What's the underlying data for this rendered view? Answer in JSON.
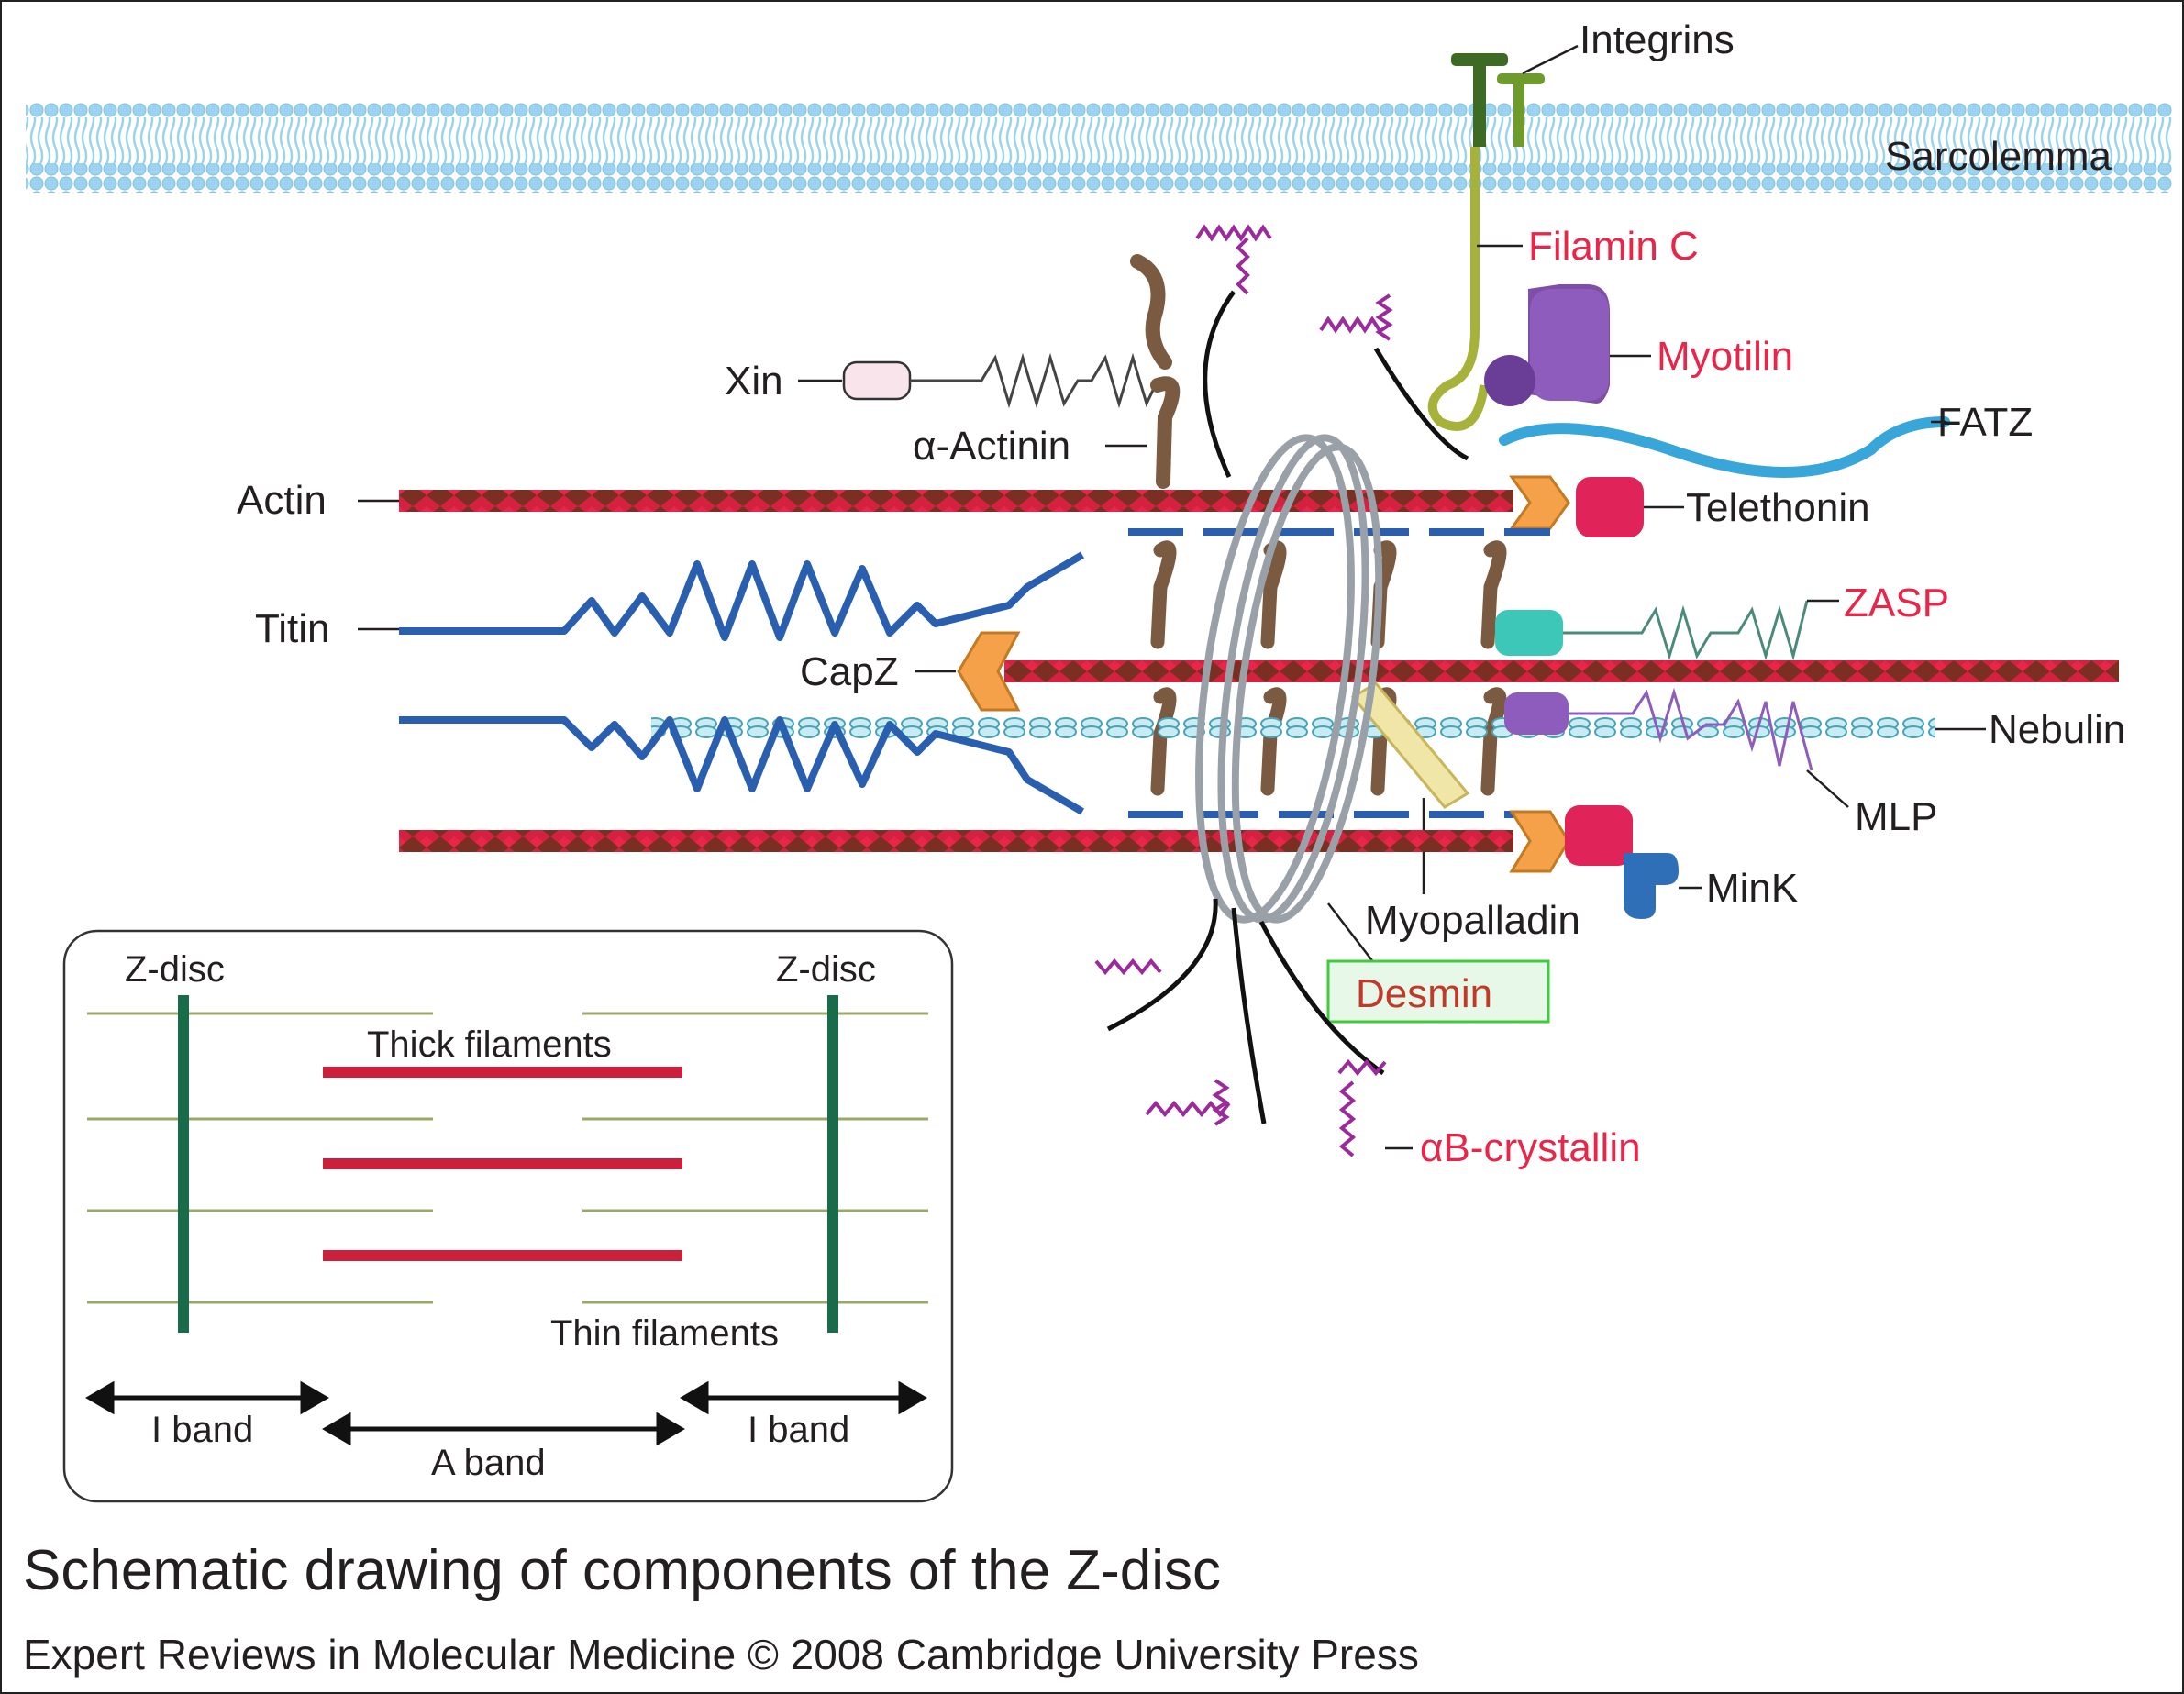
{
  "labels": {
    "integrins": "Integrins",
    "sarcolemma": "Sarcolemma",
    "filamin_c": "Filamin C",
    "myotilin": "Myotilin",
    "fatz": "FATZ",
    "xin": "Xin",
    "alpha_actinin": "α-Actinin",
    "actin": "Actin",
    "telethonin": "Telethonin",
    "titin": "Titin",
    "zasp": "ZASP",
    "capz": "CapZ",
    "nebulin": "Nebulin",
    "mlp": "MLP",
    "mink": "MinK",
    "myopalladin": "Myopalladin",
    "desmin": "Desmin",
    "ab_crystallin": "αB-crystallin"
  },
  "inset": {
    "z_disc_left": "Z-disc",
    "z_disc_right": "Z-disc",
    "thick_filaments": "Thick filaments",
    "thin_filaments": "Thin filaments",
    "i_band_left": "I band",
    "a_band": "A band",
    "i_band_right": "I band"
  },
  "caption": {
    "title": "Schematic drawing of components of the Z-disc",
    "credit": "Expert Reviews in Molecular Medicine © 2008 Cambridge University Press"
  },
  "colors": {
    "disease_protein_label": "#e8264a",
    "desmin_label": "#c0392b",
    "desmin_box": "#3ccc3c",
    "membrane": "#9cd3ee",
    "actin_red": "#d4213f",
    "actin_brown": "#7a2f22",
    "titin": "#2a5fb0",
    "alpha_actinin": "#7a5a40",
    "desmin_coil": "#9aa0a8",
    "crystallin": "#9b2a9b",
    "thick_filament": "#cc1f3c",
    "z_line": "#1a6b4a",
    "thin_filament": "#9aa86a"
  }
}
